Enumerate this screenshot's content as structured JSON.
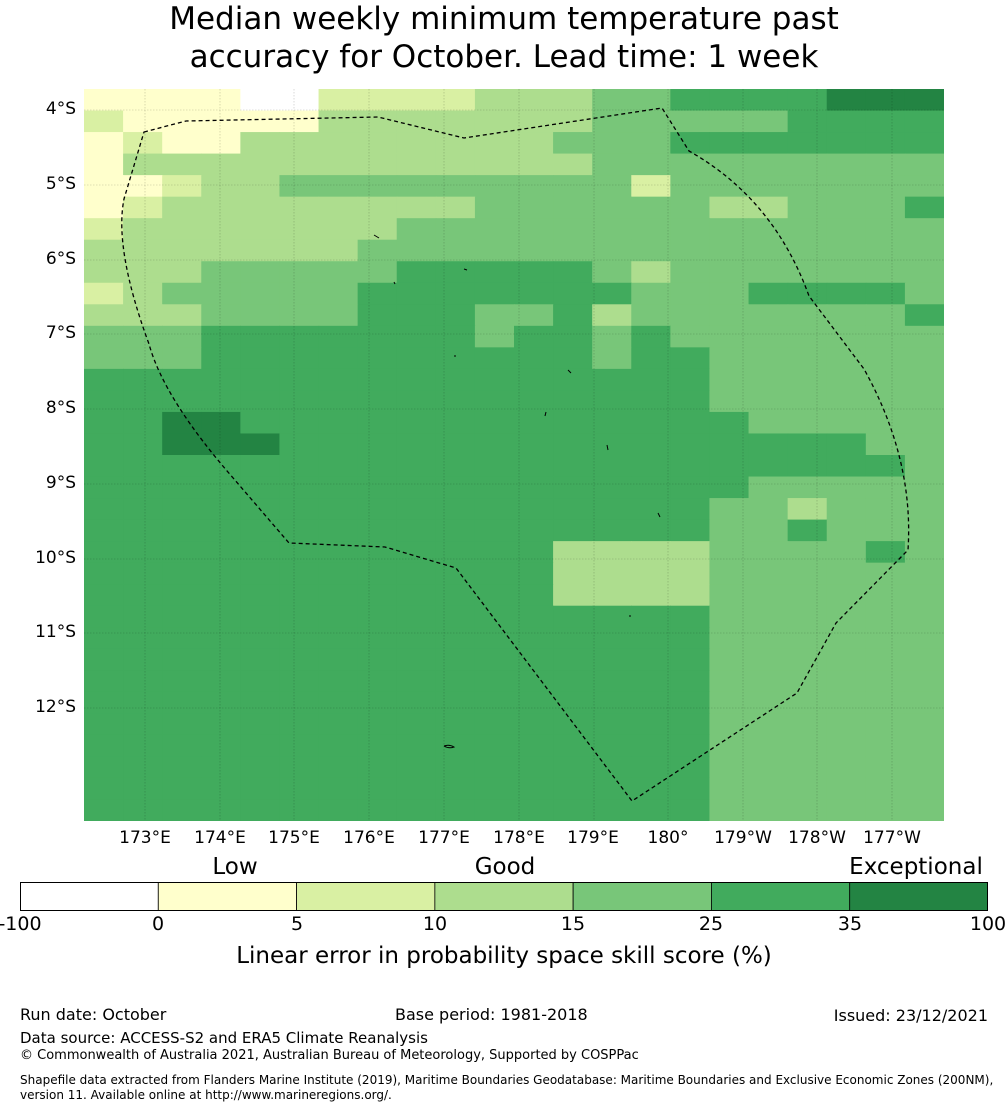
{
  "title_line1": "Median weekly minimum temperature past",
  "title_line2": "accuracy for October. Lead time: 1 week",
  "map": {
    "lon_labels": [
      "173°E",
      "174°E",
      "175°E",
      "176°E",
      "177°E",
      "178°E",
      "179°E",
      "180°",
      "179°W",
      "178°W",
      "177°W"
    ],
    "lat_labels": [
      "4°S",
      "5°S",
      "6°S",
      "7°S",
      "8°S",
      "9°S",
      "10°S",
      "11°S",
      "12°S"
    ],
    "category_colors": {
      "c0": "#ffffff",
      "c1": "#ffffcc",
      "c2": "#d9f0a3",
      "c3": "#addd8e",
      "c4": "#78c679",
      "c5": "#41ab5d",
      "c6": "#238443"
    },
    "grid_rows": [
      "1111002222333445555666",
      "2111113333333444445555",
      "1211333333334445555555",
      "1333333333333444444444",
      "1123344444444424444444",
      "1233333333444444334445",
      "2333333344444444444444",
      "3333333444444444444444",
      "3334444455555434444444",
      "2344444555555544455554",
      "3334444555445344444445",
      "4445555555455454444444",
      "4445555555555455444444",
      "5555555555555555444444",
      "5555555555555555444444",
      "5566555555555555544444",
      "5566655555555555555544",
      "5555555555555555555554",
      "5555555555555555544444",
      "5555555555555555443444",
      "5555555555555555445444",
      "5555555555553333444454",
      "5555555555553333444444",
      "5555555555553333444444",
      "5555555555555555444444",
      "5555555555555555444444",
      "5555555555555555444444",
      "5555555555555555444444",
      "5555555555555555444444",
      "5555555555555555444444",
      "5555555555555555444444",
      "5555555555555555444444",
      "5555555555555555444444",
      "5555555555555555444444"
    ]
  },
  "categories": {
    "low": "Low",
    "good": "Good",
    "exceptional": "Exceptional"
  },
  "colorbar": {
    "ticks": [
      "-100",
      "0",
      "5",
      "10",
      "15",
      "25",
      "35",
      "100"
    ],
    "colors": [
      "#ffffff",
      "#ffffcc",
      "#d9f0a3",
      "#addd8e",
      "#78c679",
      "#41ab5d",
      "#238443"
    ],
    "label": "Linear error in probability space skill score (%)"
  },
  "footer": {
    "run_date": "Run date: October",
    "base_period": "Base period: 1981-2018",
    "issued": "Issued: 23/12/2021",
    "data_source": "Data source: ACCESS-S2 and ERA5 Climate Reanalysis",
    "copyright": "© Commonwealth of Australia 2021, Australian Bureau of Meteorology, Supported by COSPPac",
    "shapefile_line1": "Shapefile data extracted from Flanders Marine Institute (2019), Maritime Boundaries Geodatabase: Maritime Boundaries and Exclusive Economic Zones (200NM),",
    "shapefile_line2": "version 11. Available online at http://www.marineregions.org/."
  }
}
